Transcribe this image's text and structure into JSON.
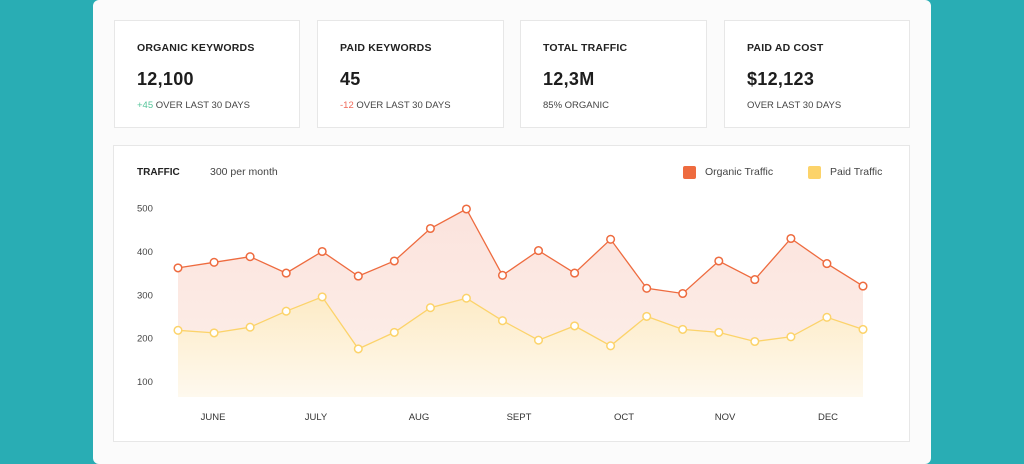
{
  "stats": [
    {
      "label": "ORGANIC KEYWORDS",
      "value": "12,100",
      "delta": "+45",
      "delta_type": "positive",
      "sub": "OVER LAST 30 DAYS"
    },
    {
      "label": "PAID KEYWORDS",
      "value": "45",
      "delta": "-12",
      "delta_type": "negative",
      "sub": "OVER LAST 30 DAYS"
    },
    {
      "label": "TOTAL TRAFFIC",
      "value": "12,3M",
      "delta": "",
      "delta_type": "none",
      "sub": "85% ORGANIC"
    },
    {
      "label": "PAID AD COST",
      "value": "$12,123",
      "delta": "",
      "delta_type": "none",
      "sub": "OVER LAST 30 DAYS"
    }
  ],
  "chart_header": {
    "title": "TRAFFIC",
    "subtitle": "300 per month"
  },
  "colors": {
    "organic": "#ee6b3f",
    "paid": "#fcd36a",
    "background": "#29adb4"
  },
  "chart_data": {
    "type": "area",
    "title": "TRAFFIC",
    "subtitle": "300 per month",
    "x_tick_labels": [
      "JUNE",
      "JULY",
      "AUG",
      "SEPT",
      "OCT",
      "NOV",
      "DEC"
    ],
    "y_ticks": [
      100,
      200,
      300,
      400,
      500
    ],
    "ylim": [
      50,
      505
    ],
    "grid": false,
    "legend_placement": "top-right",
    "points_per_series": 20,
    "series": [
      {
        "name": "Organic Traffic",
        "color": "#ee6b3f",
        "values": [
          362,
          375,
          388,
          350,
          400,
          343,
          378,
          453,
          498,
          345,
          402,
          350,
          428,
          315,
          303,
          378,
          335,
          430,
          372,
          320
        ]
      },
      {
        "name": "Paid Traffic",
        "color": "#fcd36a",
        "values": [
          218,
          212,
          225,
          262,
          295,
          175,
          213,
          270,
          292,
          240,
          195,
          228,
          182,
          250,
          220,
          213,
          192,
          203,
          248,
          220
        ]
      }
    ]
  }
}
